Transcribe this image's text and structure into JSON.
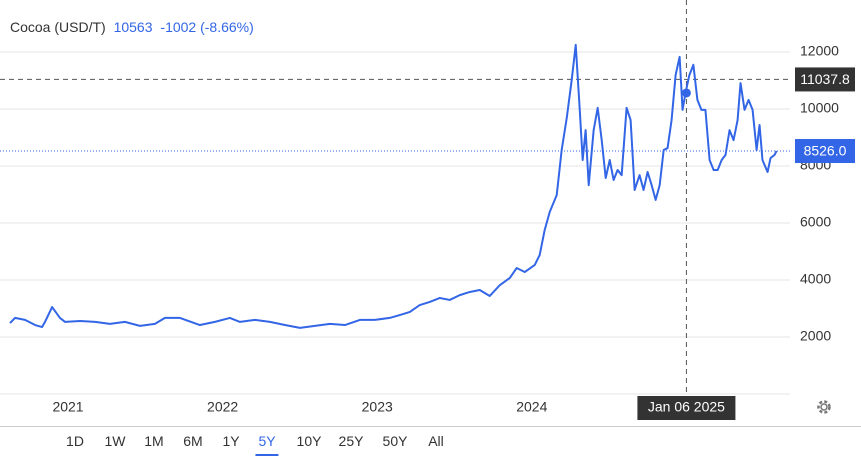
{
  "chart_data": {
    "type": "line",
    "title": "Cocoa (USD/T)",
    "quote": {
      "price": 10563,
      "change": -1002,
      "change_pct": "(-8.66%)"
    },
    "color": "#3366e6",
    "x": [
      2020.625,
      2020.657,
      2020.722,
      2020.787,
      2020.832,
      2020.851,
      2020.897,
      2020.948,
      2020.981,
      2021.078,
      2021.175,
      2021.271,
      2021.368,
      2021.465,
      2021.562,
      2021.627,
      2021.724,
      2021.853,
      2021.95,
      2022.047,
      2022.112,
      2022.209,
      2022.306,
      2022.403,
      2022.5,
      2022.597,
      2022.694,
      2022.791,
      2022.888,
      2022.984,
      2023.081,
      2023.146,
      2023.211,
      2023.275,
      2023.34,
      2023.405,
      2023.469,
      2023.534,
      2023.599,
      2023.663,
      2023.728,
      2023.793,
      2023.857,
      2023.902,
      2023.954,
      2024.019,
      2024.051,
      2024.083,
      2024.116,
      2024.161,
      2024.193,
      2024.226,
      2024.258,
      2024.284,
      2024.31,
      2024.329,
      2024.348,
      2024.368,
      2024.4,
      2024.426,
      2024.452,
      2024.478,
      2024.504,
      2024.529,
      2024.555,
      2024.581,
      2024.613,
      2024.639,
      2024.665,
      2024.697,
      2024.723,
      2024.749,
      2024.775,
      2024.801,
      2024.827,
      2024.853,
      2024.878,
      2024.904,
      2024.93,
      2024.956,
      2024.975,
      2024.994,
      2025.019,
      2025.045,
      2025.071,
      2025.097,
      2025.123,
      2025.15,
      2025.176,
      2025.202,
      2025.228,
      2025.253,
      2025.279,
      2025.305,
      2025.331,
      2025.35,
      2025.376,
      2025.402,
      2025.428,
      2025.454,
      2025.473,
      2025.492,
      2025.525,
      2025.544,
      2025.57,
      2025.583
    ],
    "values": [
      2490,
      2670,
      2600,
      2420,
      2350,
      2530,
      3050,
      2670,
      2530,
      2560,
      2530,
      2460,
      2530,
      2390,
      2460,
      2670,
      2670,
      2420,
      2530,
      2670,
      2530,
      2600,
      2530,
      2420,
      2320,
      2390,
      2460,
      2420,
      2600,
      2600,
      2670,
      2770,
      2880,
      3120,
      3230,
      3370,
      3300,
      3470,
      3580,
      3650,
      3440,
      3820,
      4070,
      4420,
      4280,
      4530,
      4880,
      5750,
      6390,
      6980,
      8560,
      9690,
      11020,
      12250,
      9970,
      8210,
      9260,
      7330,
      9260,
      10040,
      8910,
      7580,
      8210,
      7510,
      7860,
      7680,
      10040,
      9610,
      7160,
      7680,
      7160,
      7790,
      7330,
      6810,
      7330,
      8560,
      8630,
      9610,
      11190,
      11830,
      9970,
      10560,
      11190,
      11550,
      10320,
      9970,
      9970,
      8210,
      7860,
      7860,
      8210,
      8390,
      9260,
      8910,
      9610,
      10910,
      9970,
      10320,
      9970,
      8560,
      9440,
      8210,
      7790,
      8280,
      8390,
      8530
    ],
    "xlim": [
      2020.56,
      2025.67
    ],
    "xticks": [
      2021,
      2022,
      2023,
      2024
    ],
    "ylim": [
      0,
      13825
    ],
    "yticks": [
      2000,
      4000,
      6000,
      8000,
      10000,
      12000
    ],
    "grid": true,
    "crosshair": {
      "x": 2025.0,
      "x_label": "Jan 06 2025",
      "y": 11037.8,
      "point": 10563
    },
    "last": {
      "value": 8526,
      "label": "8526.0"
    },
    "ranges": [
      "1D",
      "1W",
      "1M",
      "6M",
      "1Y",
      "5Y",
      "10Y",
      "25Y",
      "50Y",
      "All"
    ],
    "active_range": "5Y"
  }
}
